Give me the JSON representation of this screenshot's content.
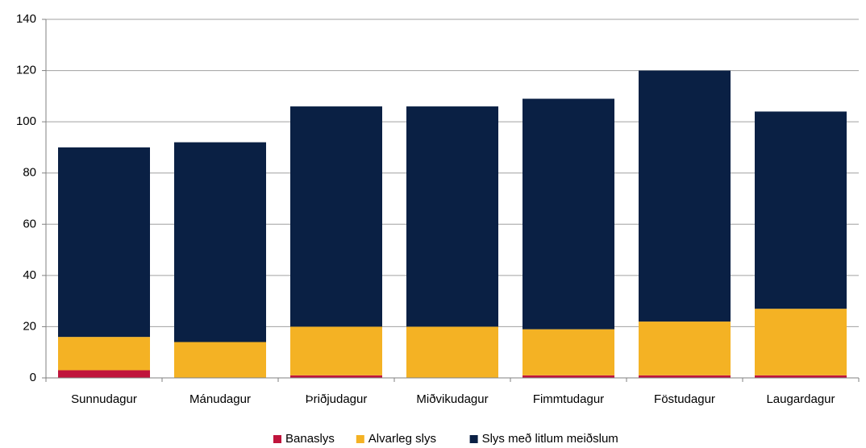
{
  "chart_data": {
    "type": "stacked_bar",
    "categories": [
      "Sunnudagur",
      "Mánudagur",
      "Þriðjudagur",
      "Miðvikudagur",
      "Fimmtudagur",
      "Föstudagur",
      "Laugardagur"
    ],
    "series": [
      {
        "name": "Banaslys",
        "color": "#c0143c",
        "values": [
          3,
          0,
          1,
          0,
          1,
          1,
          1
        ]
      },
      {
        "name": "Alvarleg slys",
        "color": "#f4b224",
        "values": [
          13,
          14,
          19,
          20,
          18,
          21,
          26
        ]
      },
      {
        "name": "Slys með litlum meiðslum",
        "color": "#0a2044",
        "values": [
          74,
          78,
          86,
          86,
          90,
          98,
          77
        ]
      }
    ],
    "ylim": [
      0,
      140
    ],
    "yticks": [
      0,
      20,
      40,
      60,
      80,
      100,
      120,
      140
    ],
    "grid": true,
    "legend": "bottom"
  }
}
